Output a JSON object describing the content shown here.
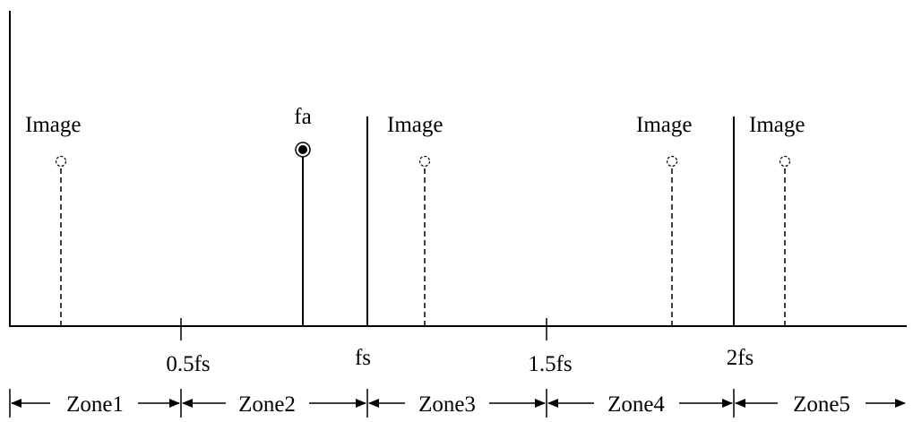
{
  "diagram": {
    "signal_label": "fa",
    "image_label": "Image",
    "axis_ticks": [
      {
        "id": "half-fs",
        "label": "0.5fs"
      },
      {
        "id": "fs",
        "label": "fs"
      },
      {
        "id": "one-half-fs",
        "label": "1.5fs"
      },
      {
        "id": "two-fs",
        "label": "2fs"
      }
    ],
    "zones": [
      {
        "id": "zone1",
        "label": "Zone1"
      },
      {
        "id": "zone2",
        "label": "Zone2"
      },
      {
        "id": "zone3",
        "label": "Zone3"
      },
      {
        "id": "zone4",
        "label": "Zone4"
      },
      {
        "id": "zone5",
        "label": "Zone5"
      }
    ]
  }
}
